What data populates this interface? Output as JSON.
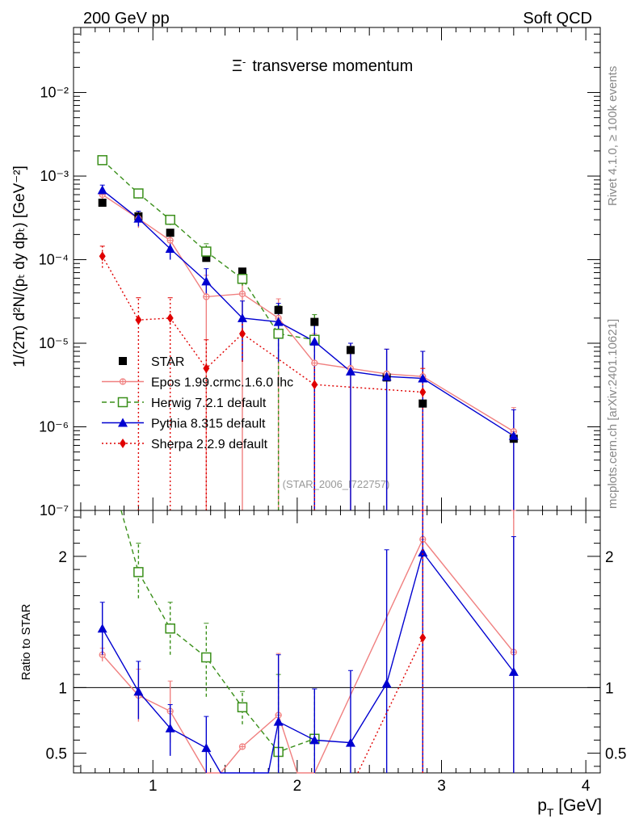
{
  "header": {
    "left": "200 GeV pp",
    "right": "Soft QCD"
  },
  "side_labels": {
    "rivet": "Rivet 4.1.0, ≥ 100k events",
    "mcplots": "mcplots.cern.ch [arXiv:2401.10621]"
  },
  "chart_data": {
    "type": "scatter",
    "title_prefix": "Ξ",
    "title_superscript": "-",
    "title": "transverse momentum",
    "watermark": "(STAR_2006_I722757)",
    "xlabel": "p",
    "xlabel_sub": "T",
    "xlabel_unit": " [GeV]",
    "ylabel": "1/(2π)  d²N/(pₜ dy dpₜ) [GeV⁻²]",
    "ratio_ylabel": "Ratio to STAR",
    "xlim": [
      0.45,
      4.1
    ],
    "ylim": [
      1e-07,
      0.06
    ],
    "yscale": "log",
    "ratio_ylim": [
      0.35,
      2.35
    ],
    "x_ticks": [
      1,
      2,
      3,
      4
    ],
    "x_tick_labels": [
      "1",
      "2",
      "3",
      "4"
    ],
    "y_ticks": [
      1e-07,
      1e-06,
      1e-05,
      0.0001,
      0.001,
      0.01
    ],
    "y_tick_labels": [
      "10⁻⁷",
      "10⁻⁶",
      "10⁻⁵",
      "10⁻⁴",
      "10⁻³",
      "10⁻²"
    ],
    "ratio_ticks": [
      0.5,
      1,
      2
    ],
    "ratio_tick_labels": [
      "0.5",
      "1",
      "2"
    ],
    "series": [
      {
        "name": "STAR",
        "color": "#000000",
        "marker": "square-filled",
        "line": "none",
        "x": [
          0.65,
          0.9,
          1.12,
          1.37,
          1.62,
          1.87,
          2.12,
          2.37,
          2.62,
          2.87,
          3.5
        ],
        "y": [
          0.00048,
          0.00033,
          0.00021,
          0.000105,
          7.2e-05,
          2.5e-05,
          1.8e-05,
          8.3e-06,
          3.9e-06,
          1.9e-06,
          7.2e-07
        ]
      },
      {
        "name": "Epos 1.99.crmc.1.6.0 lhc",
        "color": "#f08080",
        "marker": "open-circle-plus",
        "line": "solid",
        "x": [
          0.65,
          0.9,
          1.12,
          1.37,
          1.62,
          1.87,
          2.12,
          2.37,
          2.62,
          2.87,
          3.5
        ],
        "y": [
          0.0006,
          0.00031,
          0.00017,
          3.6e-05,
          3.9e-05,
          2e-05,
          5.8e-06,
          5e-06,
          4.3e-06,
          4e-06,
          8.8e-07
        ],
        "err_lo": [
          0.00053,
          0.00024,
          0.000125,
          1e-07,
          1e-07,
          1e-07,
          1e-07,
          1e-07,
          1e-07,
          1e-07,
          1e-07
        ],
        "err_hi": [
          0.00067,
          0.00038,
          0.000215,
          6.5e-05,
          7e-05,
          3.4e-05,
          1.3e-05,
          1e-05,
          8.5e-06,
          8e-06,
          1.7e-06
        ]
      },
      {
        "name": "Herwig 7.2.1 default",
        "color": "#3a8f1a",
        "marker": "open-square",
        "line": "dashed",
        "x": [
          0.65,
          0.9,
          1.12,
          1.37,
          1.62,
          1.87,
          2.12
        ],
        "y": [
          0.00155,
          0.00062,
          0.0003,
          0.000125,
          5.9e-05,
          1.3e-05,
          1.1e-05
        ],
        "err_lo": [
          0.0015,
          0.00054,
          0.00026,
          0.0001,
          4.9e-05,
          1e-07,
          1e-07
        ],
        "err_hi": [
          0.0016,
          0.0007,
          0.00034,
          0.000155,
          6.9e-05,
          2.8e-05,
          2.2e-05
        ]
      },
      {
        "name": "Pythia 8.315 default",
        "color": "#0000d0",
        "marker": "filled-triangle",
        "line": "solid",
        "x": [
          0.65,
          0.9,
          1.12,
          1.37,
          1.62,
          1.87,
          2.12,
          2.37,
          2.62,
          2.87,
          3.5
        ],
        "y": [
          0.00068,
          0.00031,
          0.000135,
          5.5e-05,
          2e-05,
          1.8e-05,
          1.05e-05,
          4.6e-06,
          4e-06,
          3.8e-06,
          7.8e-07
        ],
        "err_lo": [
          0.0006,
          0.00025,
          0.0001,
          3.3e-05,
          6e-06,
          6e-06,
          1e-07,
          1e-07,
          1e-07,
          1e-07,
          1e-07
        ],
        "err_hi": [
          0.00078,
          0.00038,
          0.00017,
          7.8e-05,
          3.2e-05,
          3e-05,
          1.7e-05,
          1e-05,
          8.5e-06,
          8e-06,
          1.6e-06
        ]
      },
      {
        "name": "Sherpa 2.2.9 default",
        "color": "#e00000",
        "marker": "filled-diamond",
        "line": "dotted",
        "x": [
          0.65,
          0.9,
          1.12,
          1.37,
          1.62,
          2.12,
          2.87
        ],
        "y": [
          0.00011,
          1.9e-05,
          2e-05,
          5e-06,
          1.3e-05,
          3.2e-06,
          2.6e-06
        ],
        "err_lo": [
          8e-05,
          1e-07,
          1e-07,
          1e-07,
          6e-06,
          1e-07,
          1e-07
        ],
        "err_hi": [
          0.000145,
          3.5e-05,
          3.5e-05,
          1.1e-05,
          2e-05,
          6e-06,
          5e-06
        ]
      }
    ],
    "ratios": [
      {
        "name": "Epos 1.99.crmc.1.6.0 lhc",
        "x": [
          0.65,
          0.9,
          1.12,
          1.37,
          1.47,
          1.62,
          1.87,
          2.0,
          2.12,
          2.87,
          3.5
        ],
        "y": [
          1.25,
          0.94,
          0.82,
          0.34,
          0.34,
          0.55,
          0.79,
          0.34,
          0.34,
          2.13,
          1.27
        ],
        "err_lo": [
          1.2,
          0.74,
          0.58,
          0.34,
          0.34,
          0.34,
          0.34,
          0.34,
          0.34,
          0.34,
          0.34
        ],
        "err_hi": [
          1.3,
          1.14,
          1.05,
          0.34,
          0.34,
          0.34,
          1.26,
          0.34,
          0.34,
          2.4,
          2.4
        ],
        "show_marker": [
          true,
          true,
          true,
          false,
          false,
          true,
          true,
          false,
          false,
          true,
          true
        ]
      },
      {
        "name": "Herwig 7.2.1 default",
        "x": [
          0.9,
          1.12,
          1.37,
          1.62,
          1.87,
          2.12
        ],
        "y": [
          1.88,
          1.45,
          1.23,
          0.85,
          0.51,
          0.61
        ],
        "err_lo": [
          1.68,
          1.25,
          0.93,
          0.72,
          0.34,
          0.34
        ],
        "err_hi": [
          2.1,
          1.65,
          1.49,
          0.97,
          1.1,
          0.99
        ],
        "lead_in_from": [
          0.78,
          2.35
        ]
      },
      {
        "name": "Pythia 8.315 default",
        "x": [
          0.65,
          0.9,
          1.12,
          1.37,
          1.47,
          1.8,
          1.87,
          2.12,
          2.37,
          2.62,
          2.87,
          3.5
        ],
        "y": [
          1.45,
          0.97,
          0.69,
          0.54,
          0.34,
          0.34,
          0.74,
          0.6,
          0.58,
          1.03,
          2.03,
          1.12
        ],
        "err_lo": [
          1.25,
          0.76,
          0.48,
          0.34,
          0.34,
          0.34,
          0.34,
          0.34,
          0.34,
          0.34,
          0.34,
          0.34
        ],
        "err_hi": [
          1.65,
          1.2,
          0.87,
          0.78,
          0.34,
          0.34,
          1.25,
          0.99,
          1.13,
          2.05,
          2.4,
          2.15
        ],
        "show_marker": [
          true,
          true,
          true,
          true,
          false,
          false,
          true,
          true,
          true,
          true,
          true,
          true
        ]
      },
      {
        "name": "Sherpa 2.2.9 default",
        "x": [
          2.42,
          2.87
        ],
        "y": [
          0.34,
          1.38
        ],
        "err_lo": [
          0.34,
          0.34
        ],
        "err_hi": [
          0.34,
          2.4
        ],
        "show_marker": [
          false,
          true
        ]
      }
    ]
  }
}
